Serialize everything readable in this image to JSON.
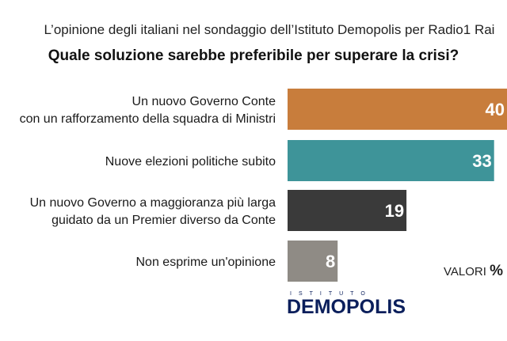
{
  "header": {
    "subtitle": "L’opinione degli italiani nel sondaggio dell’Istituto Demopolis per Radio1 Rai",
    "title": "Quale soluzione sarebbe preferibile per superare la crisi?"
  },
  "chart_data": {
    "type": "bar",
    "orientation": "horizontal",
    "categories": [
      [
        "Un nuovo Governo Conte",
        "con un rafforzamento della squadra di Ministri"
      ],
      [
        "Nuove elezioni politiche subito"
      ],
      [
        "Un nuovo Governo a maggioranza più larga",
        "guidato da un Premier diverso da Conte"
      ],
      [
        "Non esprime un'opinione"
      ]
    ],
    "values": [
      40,
      33,
      19,
      8
    ],
    "value_labels": [
      "40",
      "33",
      "19",
      "8"
    ],
    "colors": [
      "#c87d3c",
      "#3e9499",
      "#3a3a3a",
      "#8f8b85"
    ],
    "unit_label": "VALORI",
    "unit_symbol": "%"
  },
  "logo": {
    "top_text": "ISTITUTO",
    "main_text": "DEMOPOLIS"
  }
}
